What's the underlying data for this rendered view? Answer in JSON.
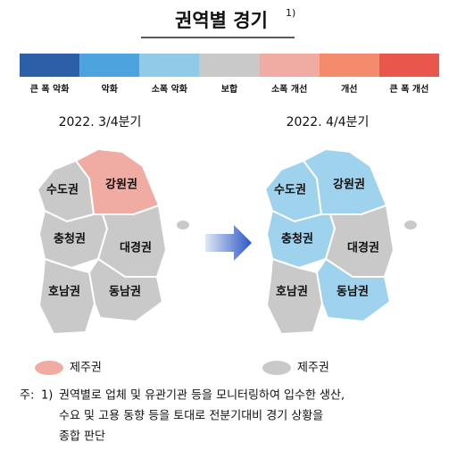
{
  "title": "권역별 경기",
  "title_note": "1)",
  "legend": [
    {
      "label": "큰 폭 악화",
      "color": "#2b5fa8"
    },
    {
      "label": "악화",
      "color": "#4da3dd"
    },
    {
      "label": "소폭 악화",
      "color": "#8fcbe9"
    },
    {
      "label": "보합",
      "color": "#c9c9c9"
    },
    {
      "label": "소폭 개선",
      "color": "#f0aca2"
    },
    {
      "label": "개선",
      "color": "#f58b6d"
    },
    {
      "label": "큰 폭 개선",
      "color": "#e9564c"
    }
  ],
  "maps": [
    {
      "period": "2022. 3/4분기",
      "regions": [
        {
          "name": "수도권",
          "color": "#c9c9c9"
        },
        {
          "name": "강원권",
          "color": "#f0aca2"
        },
        {
          "name": "충청권",
          "color": "#c9c9c9"
        },
        {
          "name": "대경권",
          "color": "#c9c9c9"
        },
        {
          "name": "호남권",
          "color": "#c9c9c9"
        },
        {
          "name": "동남권",
          "color": "#c9c9c9"
        },
        {
          "name": "제주권",
          "color": "#f0aca2"
        }
      ]
    },
    {
      "period": "2022. 4/4분기",
      "regions": [
        {
          "name": "수도권",
          "color": "#9fd2ec"
        },
        {
          "name": "강원권",
          "color": "#9fd2ec"
        },
        {
          "name": "충청권",
          "color": "#9fd2ec"
        },
        {
          "name": "대경권",
          "color": "#c9c9c9"
        },
        {
          "name": "호남권",
          "color": "#c9c9c9"
        },
        {
          "name": "동남권",
          "color": "#9fd2ec"
        },
        {
          "name": "제주권",
          "color": "#c9c9c9"
        }
      ]
    }
  ],
  "note": {
    "prefix": "주:",
    "marker": "1)",
    "lines": [
      "권역별로 업체 및 유관기관 등을 모니터링하여 입수한 생산,",
      "수요 및 고용 동향 등을 토대로 전분기대비 경기 상황을",
      "종합 판단"
    ]
  }
}
